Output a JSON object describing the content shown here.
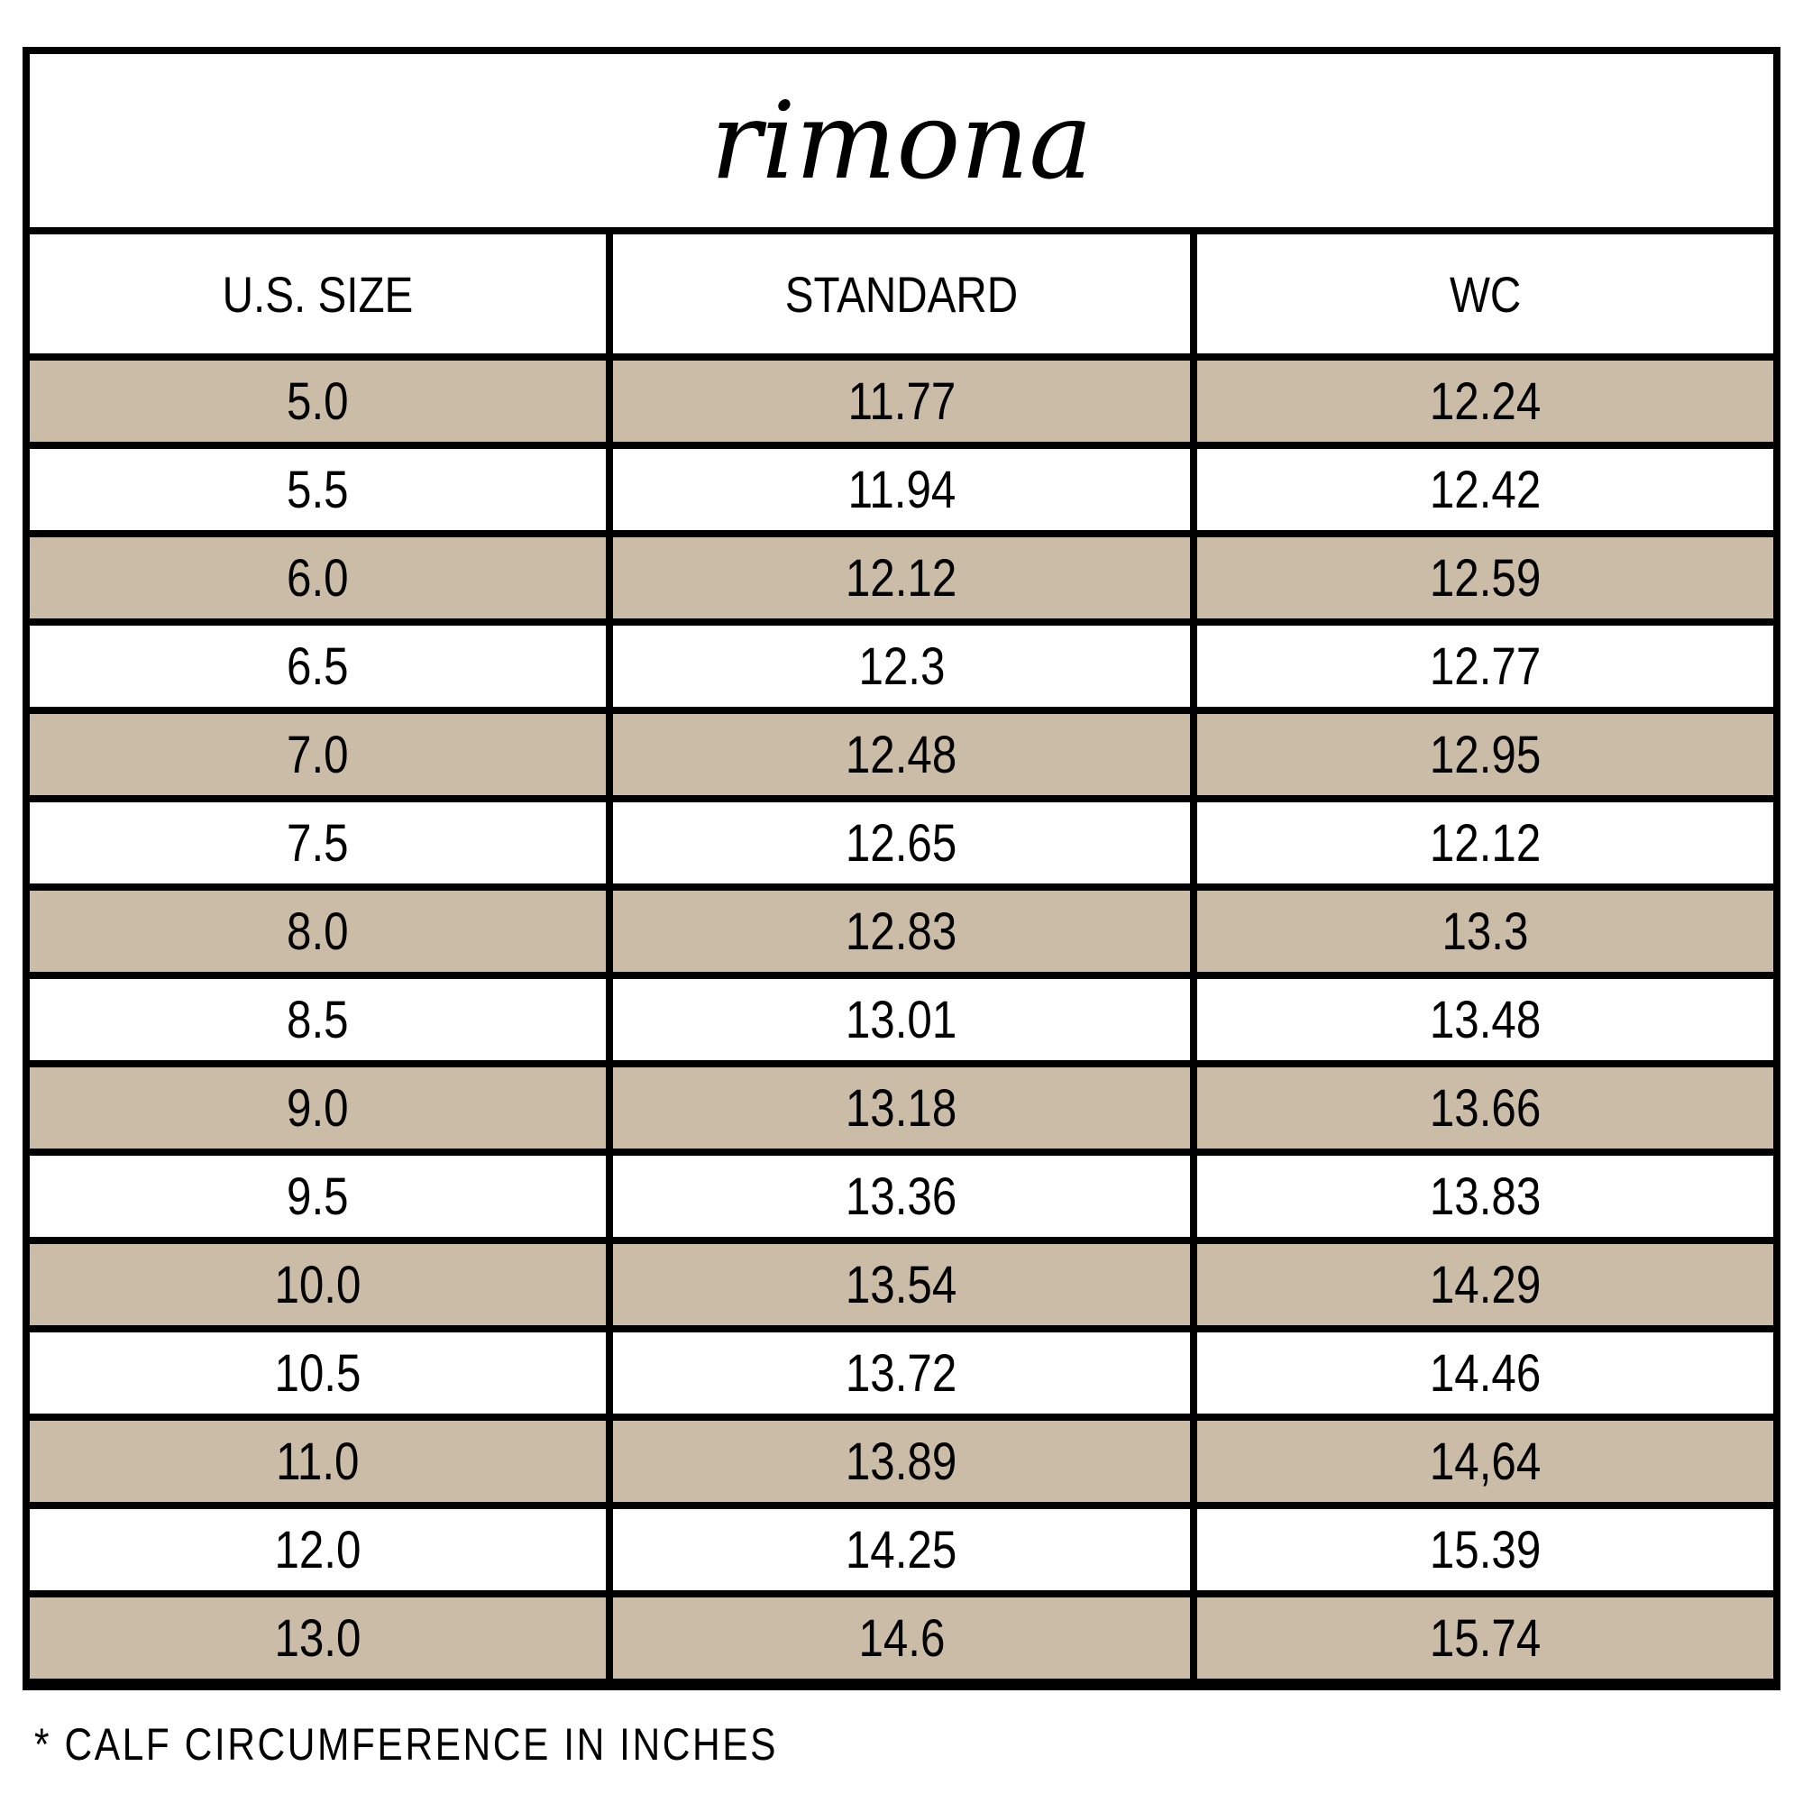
{
  "title": "rimona",
  "table": {
    "headers": [
      "U.S. SIZE",
      "STANDARD",
      "WC"
    ],
    "rows": [
      [
        "5.0",
        "11.77",
        "12.24"
      ],
      [
        "5.5",
        "11.94",
        "12.42"
      ],
      [
        "6.0",
        "12.12",
        "12.59"
      ],
      [
        "6.5",
        "12.3",
        "12.77"
      ],
      [
        "7.0",
        "12.48",
        "12.95"
      ],
      [
        "7.5",
        "12.65",
        "12.12"
      ],
      [
        "8.0",
        "12.83",
        "13.3"
      ],
      [
        "8.5",
        "13.01",
        "13.48"
      ],
      [
        "9.0",
        "13.18",
        "13.66"
      ],
      [
        "9.5",
        "13.36",
        "13.83"
      ],
      [
        "10.0",
        "13.54",
        "14.29"
      ],
      [
        "10.5",
        "13.72",
        "14.46"
      ],
      [
        "11.0",
        "13.89",
        "14,64"
      ],
      [
        "12.0",
        "14.25",
        "15.39"
      ],
      [
        "13.0",
        "14.6",
        "15.74"
      ]
    ]
  },
  "footnote": "* CALF CIRCUMFERENCE IN INCHES",
  "colors": {
    "row_highlight": "#CABCA6",
    "border": "#000000",
    "background": "#FFFFFF",
    "text": "#000000"
  }
}
